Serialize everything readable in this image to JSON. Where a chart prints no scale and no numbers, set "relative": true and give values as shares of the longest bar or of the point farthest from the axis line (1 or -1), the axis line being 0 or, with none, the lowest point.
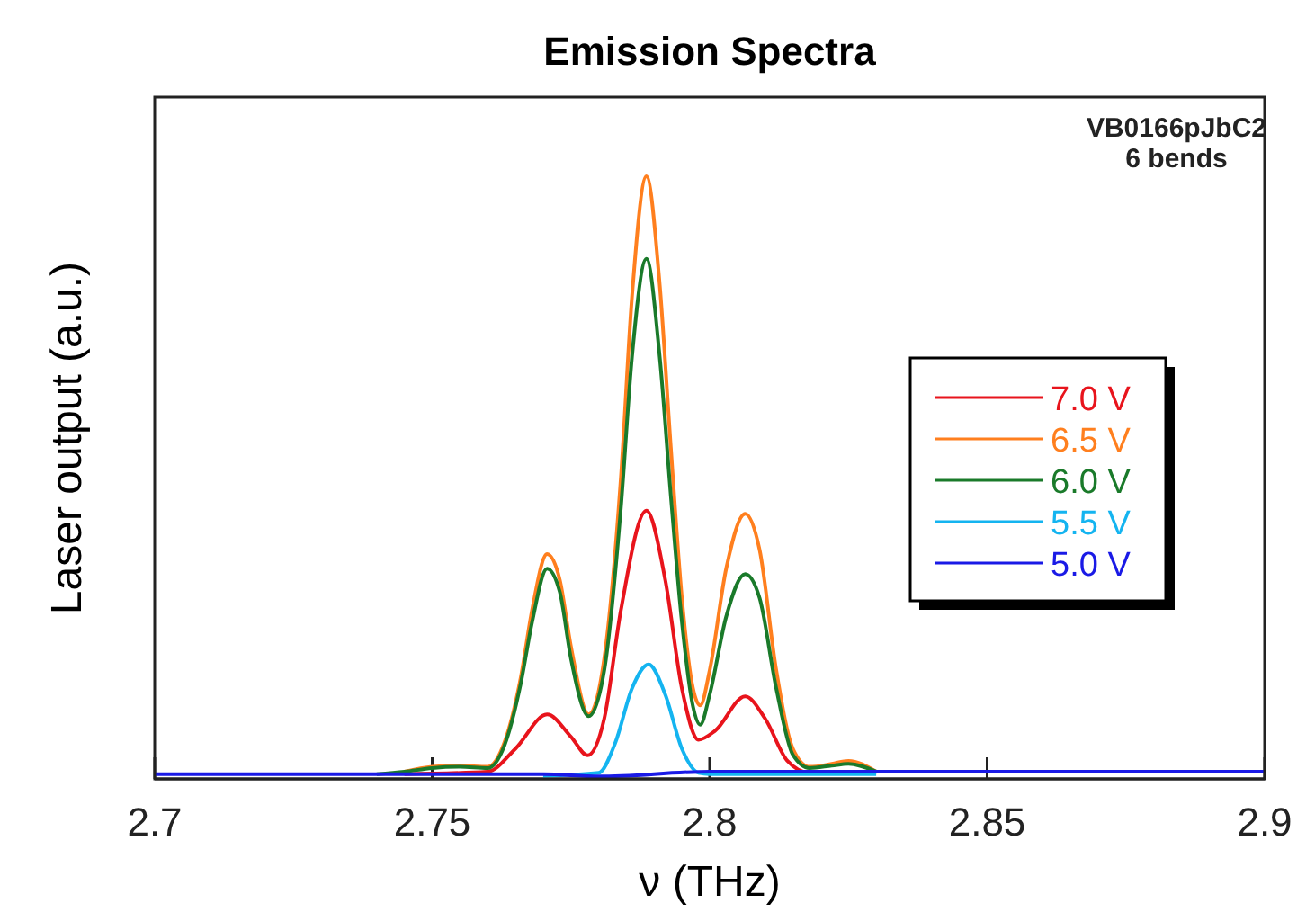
{
  "chart_data": {
    "type": "line",
    "title": "Emission Spectra",
    "xlabel": "ν (THz)",
    "ylabel": "Laser output (a.u.)",
    "relative": true,
    "xlim": [
      2.7,
      2.9
    ],
    "xticks": [
      2.7,
      2.75,
      2.8,
      2.85,
      2.9
    ],
    "legend": "right",
    "grid": false,
    "line_style": "solid",
    "annotations": [
      "VB0166pJbC2",
      "6 bends"
    ],
    "series": [
      {
        "name": "7.0 V",
        "color": "#e8141c",
        "x": [
          2.745,
          2.76,
          2.765,
          2.7707,
          2.775,
          2.778,
          2.781,
          2.784,
          2.7886,
          2.792,
          2.795,
          2.798,
          2.801,
          2.8064,
          2.81,
          2.814,
          2.818,
          2.83
        ],
        "values": [
          0.008,
          0.012,
          0.05,
          0.107,
          0.07,
          0.039,
          0.1,
          0.28,
          0.445,
          0.33,
          0.15,
          0.065,
          0.08,
          0.137,
          0.1,
          0.03,
          0.01,
          0.01
        ]
      },
      {
        "name": "6.5 V",
        "color": "#ff7f1e",
        "x": [
          2.745,
          2.75,
          2.755,
          2.76,
          2.763,
          2.766,
          2.768,
          2.7707,
          2.773,
          2.775,
          2.7782,
          2.781,
          2.784,
          2.786,
          2.7886,
          2.791,
          2.793,
          2.795,
          2.797,
          2.7983,
          2.8,
          2.803,
          2.8064,
          2.809,
          2.812,
          2.815,
          2.818,
          2.822,
          2.825,
          2.83
        ],
        "values": [
          0.012,
          0.02,
          0.022,
          0.02,
          0.06,
          0.17,
          0.28,
          0.373,
          0.33,
          0.22,
          0.107,
          0.2,
          0.5,
          0.8,
          1.0,
          0.82,
          0.55,
          0.3,
          0.15,
          0.122,
          0.18,
          0.35,
          0.44,
          0.38,
          0.18,
          0.05,
          0.02,
          0.025,
          0.03,
          0.012
        ]
      },
      {
        "name": "6.0 V",
        "color": "#1a7a2a",
        "x": [
          2.74,
          2.745,
          2.75,
          2.755,
          2.76,
          2.763,
          2.766,
          2.768,
          2.7707,
          2.773,
          2.775,
          2.7782,
          2.781,
          2.784,
          2.786,
          2.7886,
          2.791,
          2.793,
          2.795,
          2.797,
          2.7983,
          2.8,
          2.803,
          2.8064,
          2.809,
          2.812,
          2.815,
          2.818,
          2.822,
          2.825,
          2.83
        ],
        "values": [
          0.008,
          0.012,
          0.018,
          0.02,
          0.018,
          0.055,
          0.16,
          0.26,
          0.349,
          0.31,
          0.2,
          0.104,
          0.18,
          0.45,
          0.7,
          0.863,
          0.7,
          0.47,
          0.26,
          0.12,
          0.09,
          0.14,
          0.27,
          0.34,
          0.3,
          0.15,
          0.04,
          0.018,
          0.022,
          0.025,
          0.012
        ]
      },
      {
        "name": "5.5 V",
        "color": "#14b4f0",
        "x": [
          2.77,
          2.78,
          2.783,
          2.786,
          2.789,
          2.792,
          2.795,
          2.798,
          2.8,
          2.83
        ],
        "values": [
          0.005,
          0.01,
          0.06,
          0.15,
          0.19,
          0.14,
          0.05,
          0.01,
          0.008,
          0.008
        ]
      },
      {
        "name": "5.0 V",
        "color": "#1a1ae6",
        "x": [
          2.7,
          2.77,
          2.78,
          2.8,
          2.9
        ],
        "values": [
          0.008,
          0.008,
          0.004,
          0.012,
          0.012
        ]
      }
    ]
  }
}
